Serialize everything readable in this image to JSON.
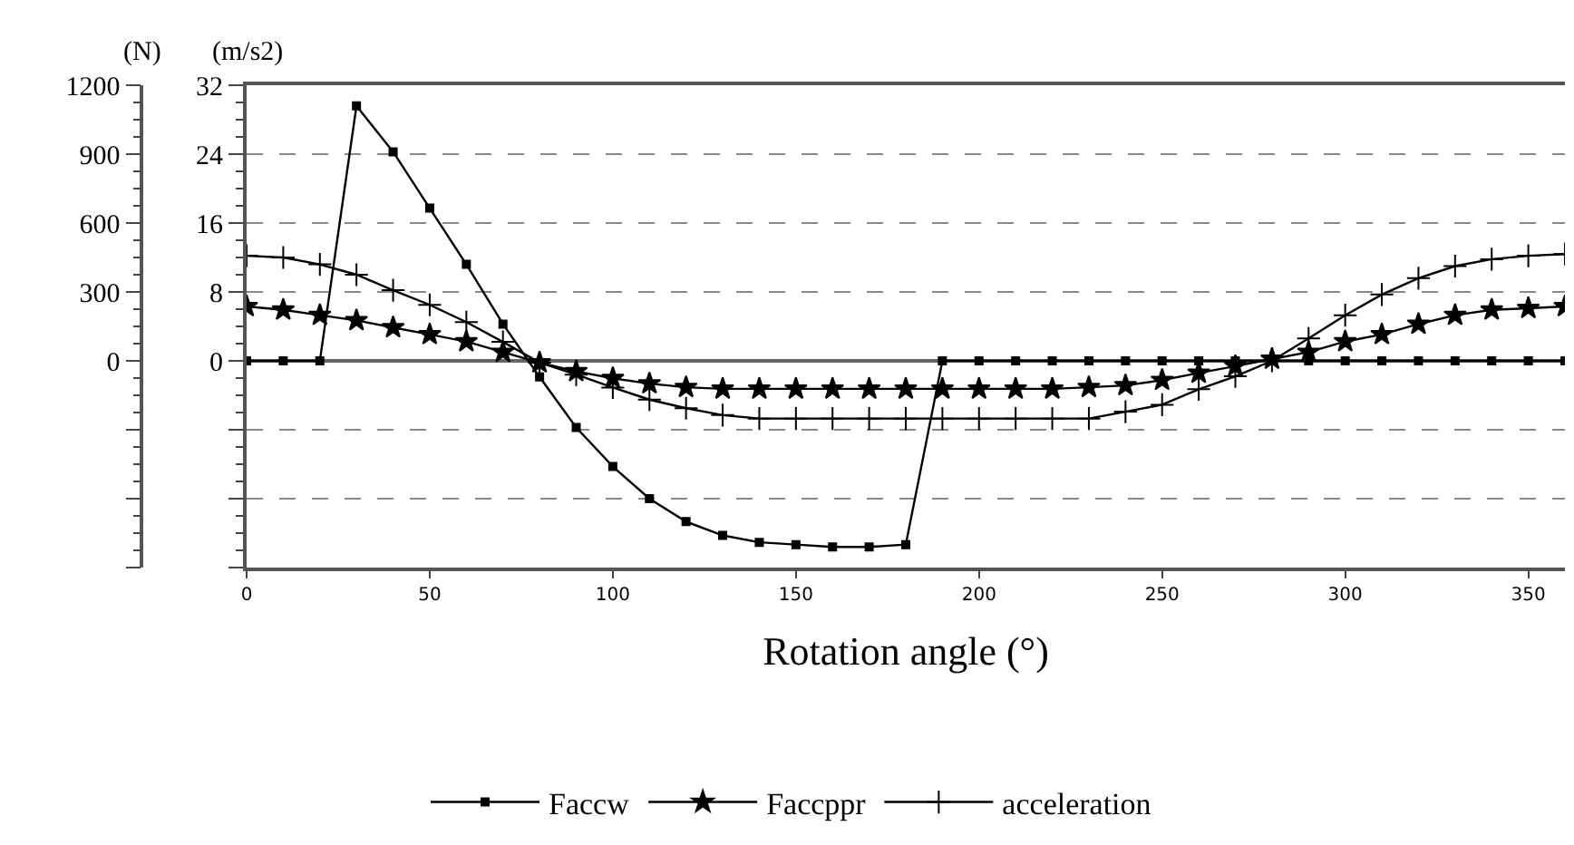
{
  "chart_data": {
    "type": "line",
    "xlabel": "Rotation angle (°)",
    "ylabel": "(N)",
    "y2label": "(m/s2)",
    "x": [
      0,
      10,
      20,
      30,
      40,
      50,
      60,
      70,
      80,
      90,
      100,
      110,
      120,
      130,
      140,
      150,
      160,
      170,
      180,
      190,
      200,
      210,
      220,
      230,
      240,
      250,
      260,
      270,
      280,
      290,
      300,
      310,
      320,
      330,
      340,
      350,
      360
    ],
    "series": [
      {
        "name": "Faccw",
        "color": "#000000",
        "marker": "square",
        "values": [
          0,
          0,
          0,
          1110,
          910,
          665,
          420,
          160,
          -70,
          -290,
          -460,
          -600,
          -700,
          -760,
          -790,
          -800,
          -810,
          -810,
          -800,
          0,
          0,
          0,
          0,
          0,
          0,
          0,
          0,
          0,
          0,
          0,
          0,
          0,
          0,
          0,
          0,
          0,
          0
        ]
      },
      {
        "name": "Faccppr",
        "color": "#000000",
        "marker": "star",
        "values": [
          237,
          222,
          199,
          176,
          145,
          115,
          84,
          38,
          -8,
          -46,
          -76,
          -99,
          -115,
          -122,
          -122,
          -122,
          -122,
          -122,
          -122,
          -122,
          -122,
          -122,
          -122,
          -115,
          -107,
          -84,
          -53,
          -23,
          8,
          38,
          84,
          115,
          160,
          199,
          222,
          229,
          237
        ]
      },
      {
        "name": "acceleration",
        "color": "#000000",
        "marker": "cross",
        "axis": "y2",
        "values": [
          12.2,
          12.0,
          11.2,
          10.0,
          8.2,
          6.5,
          4.5,
          2.2,
          -0.2,
          -1.6,
          -3.1,
          -4.5,
          -5.5,
          -6.3,
          -6.7,
          -6.7,
          -6.7,
          -6.7,
          -6.7,
          -6.7,
          -6.7,
          -6.7,
          -6.7,
          -6.7,
          -5.9,
          -5.1,
          -3.3,
          -1.8,
          0,
          2.6,
          5.3,
          7.7,
          9.6,
          11.0,
          11.8,
          12.2,
          12.4
        ]
      }
    ],
    "xlim": [
      0,
      360
    ],
    "xticks": [
      0,
      50,
      100,
      150,
      200,
      250,
      300,
      350
    ],
    "ylim": [
      -900,
      1200
    ],
    "yticks": [
      {
        "value": -900,
        "label": null
      },
      {
        "value": -600,
        "label": null
      },
      {
        "value": -300,
        "label": null
      },
      0,
      300,
      600,
      900,
      1200
    ],
    "y2lim": [
      -24,
      32
    ],
    "y2ticks": [
      {
        "value": -24,
        "label": null
      },
      {
        "value": -16,
        "label": null
      },
      {
        "value": -8,
        "label": null
      },
      0,
      8,
      16,
      24,
      32
    ],
    "grid": "y",
    "legend": "bottom",
    "line_style": "solid"
  }
}
